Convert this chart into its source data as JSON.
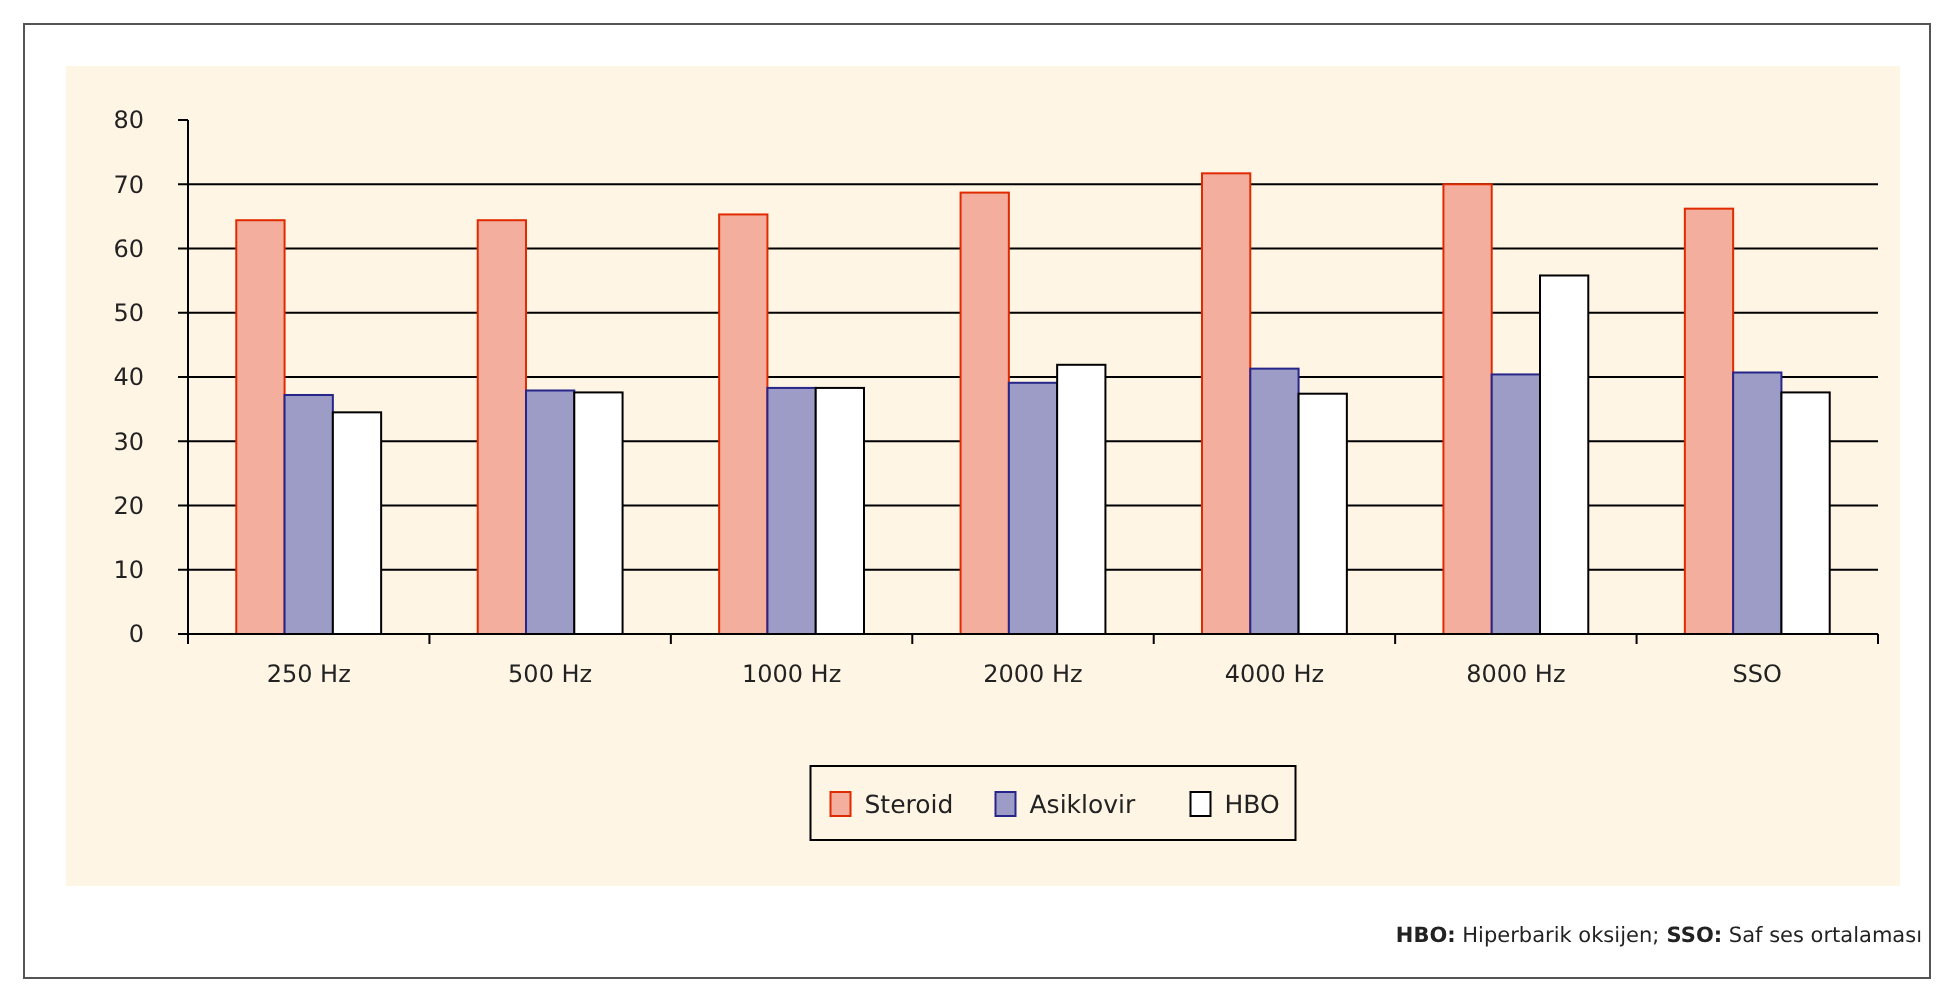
{
  "chart_data": {
    "type": "bar",
    "categories": [
      "250 Hz",
      "500 Hz",
      "1000 Hz",
      "2000 Hz",
      "4000 Hz",
      "8000 Hz",
      "SSO"
    ],
    "series": [
      {
        "name": "Steroid",
        "color": "#f4ae9e",
        "values": [
          64.4,
          64.4,
          65.3,
          68.7,
          71.7,
          70,
          66.2
        ]
      },
      {
        "name": "Asiklovir",
        "color": "#9c9cc6",
        "values": [
          37.2,
          37.9,
          38.3,
          39.1,
          41.3,
          40.4,
          40.7
        ]
      },
      {
        "name": "HBO",
        "color": "#ffffff",
        "values": [
          34.5,
          37.6,
          38.3,
          41.9,
          37.4,
          55.8,
          37.6
        ]
      }
    ],
    "ylim": [
      0,
      80
    ],
    "yticks": [
      0,
      10,
      20,
      30,
      40,
      50,
      60,
      70,
      80
    ],
    "grid": "y",
    "legend": "bottom",
    "annotations": [
      "HBO: Hiperbarik oksijen; SSO: Saf ses ortalaması"
    ]
  }
}
